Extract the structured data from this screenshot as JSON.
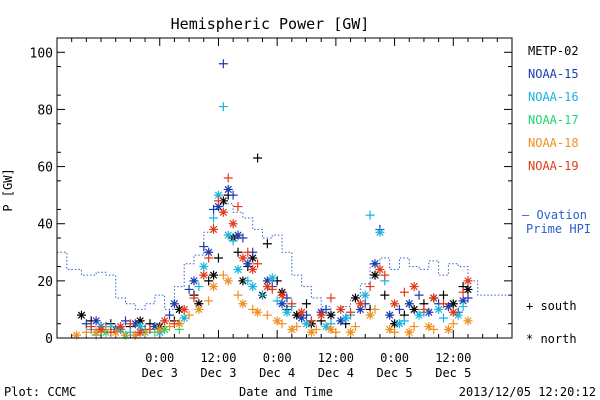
{
  "chart_data": {
    "type": "scatter",
    "title": "Hemispheric Power [GW]",
    "ylabel": "P [GW]",
    "xlabel": "Date and Time",
    "ylim": [
      0,
      105
    ],
    "xlim": [
      -21,
      72
    ],
    "yticks": [
      0,
      20,
      40,
      60,
      80,
      100
    ],
    "xticks": [
      {
        "x": 0,
        "time": "0:00",
        "date": "Dec 3"
      },
      {
        "x": 12,
        "time": "12:00",
        "date": "Dec 3"
      },
      {
        "x": 24,
        "time": "0:00",
        "date": "Dec 4"
      },
      {
        "x": 36,
        "time": "12:00",
        "date": "Dec 4"
      },
      {
        "x": 48,
        "time": "0:00",
        "date": "Dec 5"
      },
      {
        "x": 60,
        "time": "12:00",
        "date": "Dec 5"
      }
    ],
    "legend_position": "right",
    "series": [
      {
        "name": "METP-02",
        "color": "#000000",
        "south": [
          [
            -14,
            6
          ],
          [
            -10,
            5
          ],
          [
            -6,
            4
          ],
          [
            -2,
            5
          ],
          [
            3,
            6
          ],
          [
            7,
            15
          ],
          [
            10,
            20
          ],
          [
            12,
            28
          ],
          [
            14,
            50
          ],
          [
            16,
            30
          ],
          [
            18,
            25
          ],
          [
            20,
            63
          ],
          [
            22,
            33
          ],
          [
            24,
            20
          ],
          [
            26,
            10
          ],
          [
            30,
            12
          ],
          [
            33,
            6
          ],
          [
            38,
            5
          ],
          [
            43,
            10
          ],
          [
            46,
            15
          ],
          [
            50,
            8
          ],
          [
            54,
            12
          ],
          [
            58,
            15
          ],
          [
            62,
            18
          ]
        ],
        "north": [
          [
            -16,
            8
          ],
          [
            -12,
            4
          ],
          [
            -8,
            3
          ],
          [
            -4,
            6
          ],
          [
            0,
            4
          ],
          [
            4,
            10
          ],
          [
            8,
            12
          ],
          [
            11,
            22
          ],
          [
            13,
            48
          ],
          [
            15,
            35
          ],
          [
            17,
            20
          ],
          [
            19,
            28
          ],
          [
            21,
            15
          ],
          [
            25,
            16
          ],
          [
            28,
            8
          ],
          [
            31,
            5
          ],
          [
            35,
            8
          ],
          [
            40,
            14
          ],
          [
            44,
            22
          ],
          [
            48,
            5
          ],
          [
            52,
            10
          ],
          [
            56,
            14
          ],
          [
            60,
            12
          ],
          [
            63,
            17
          ]
        ]
      },
      {
        "name": "NOAA-15",
        "color": "#1a3bb0",
        "south": [
          [
            -15,
            5
          ],
          [
            -11,
            4
          ],
          [
            -7,
            6
          ],
          [
            -3,
            3
          ],
          [
            2,
            8
          ],
          [
            6,
            17
          ],
          [
            9,
            32
          ],
          [
            11,
            45
          ],
          [
            13,
            96
          ],
          [
            15,
            50
          ],
          [
            17,
            35
          ],
          [
            19,
            30
          ],
          [
            23,
            18
          ],
          [
            26,
            14
          ],
          [
            30,
            8
          ],
          [
            34,
            10
          ],
          [
            38,
            7
          ],
          [
            42,
            12
          ],
          [
            45,
            38
          ],
          [
            49,
            10
          ],
          [
            53,
            15
          ],
          [
            57,
            12
          ],
          [
            61,
            9
          ],
          [
            63,
            14
          ]
        ],
        "north": [
          [
            -13,
            6
          ],
          [
            -9,
            3
          ],
          [
            -5,
            5
          ],
          [
            -1,
            4
          ],
          [
            3,
            12
          ],
          [
            7,
            20
          ],
          [
            10,
            30
          ],
          [
            12,
            46
          ],
          [
            14,
            52
          ],
          [
            16,
            36
          ],
          [
            18,
            26
          ],
          [
            22,
            20
          ],
          [
            25,
            12
          ],
          [
            29,
            7
          ],
          [
            33,
            9
          ],
          [
            37,
            6
          ],
          [
            41,
            10
          ],
          [
            44,
            26
          ],
          [
            47,
            8
          ],
          [
            51,
            12
          ],
          [
            55,
            9
          ],
          [
            59,
            11
          ],
          [
            62,
            13
          ]
        ]
      },
      {
        "name": "NOAA-16",
        "color": "#19b3e0",
        "south": [
          [
            -14,
            3
          ],
          [
            -10,
            4
          ],
          [
            -6,
            2
          ],
          [
            -2,
            3
          ],
          [
            4,
            5
          ],
          [
            8,
            18
          ],
          [
            11,
            42
          ],
          [
            13,
            81
          ],
          [
            15,
            34
          ],
          [
            18,
            20
          ],
          [
            21,
            15
          ],
          [
            24,
            13
          ],
          [
            27,
            11
          ],
          [
            31,
            6
          ],
          [
            35,
            5
          ],
          [
            39,
            8
          ],
          [
            43,
            43
          ],
          [
            46,
            20
          ],
          [
            50,
            6
          ],
          [
            54,
            9
          ],
          [
            58,
            7
          ],
          [
            62,
            11
          ]
        ],
        "north": [
          [
            -12,
            4
          ],
          [
            -8,
            3
          ],
          [
            -4,
            4
          ],
          [
            0,
            2
          ],
          [
            5,
            7
          ],
          [
            9,
            25
          ],
          [
            12,
            50
          ],
          [
            14,
            36
          ],
          [
            16,
            24
          ],
          [
            19,
            18
          ],
          [
            23,
            21
          ],
          [
            26,
            9
          ],
          [
            30,
            5
          ],
          [
            34,
            4
          ],
          [
            38,
            7
          ],
          [
            42,
            15
          ],
          [
            45,
            37
          ],
          [
            49,
            5
          ],
          [
            53,
            8
          ],
          [
            57,
            10
          ],
          [
            61,
            8
          ]
        ]
      },
      {
        "name": "NOAA-17",
        "color": "#22d873",
        "south": [
          [
            -13,
            1
          ],
          [
            -9,
            2
          ],
          [
            -5,
            1
          ],
          [
            -1,
            2
          ],
          [
            4,
            3
          ]
        ],
        "north": [
          [
            -11,
            2
          ],
          [
            -7,
            1
          ],
          [
            -3,
            2
          ],
          [
            1,
            3
          ]
        ]
      },
      {
        "name": "NOAA-18",
        "color": "#f09020",
        "south": [
          [
            -15,
            2
          ],
          [
            -11,
            3
          ],
          [
            -7,
            1
          ],
          [
            -3,
            2
          ],
          [
            2,
            4
          ],
          [
            6,
            8
          ],
          [
            10,
            13
          ],
          [
            13,
            22
          ],
          [
            16,
            15
          ],
          [
            19,
            10
          ],
          [
            22,
            8
          ],
          [
            25,
            5
          ],
          [
            28,
            4
          ],
          [
            32,
            3
          ],
          [
            36,
            2
          ],
          [
            40,
            4
          ],
          [
            44,
            10
          ],
          [
            48,
            2
          ],
          [
            52,
            4
          ],
          [
            56,
            3
          ],
          [
            60,
            5
          ]
        ],
        "north": [
          [
            -17,
            1
          ],
          [
            -13,
            2
          ],
          [
            -9,
            2
          ],
          [
            -5,
            1
          ],
          [
            0,
            3
          ],
          [
            4,
            5
          ],
          [
            8,
            10
          ],
          [
            11,
            18
          ],
          [
            14,
            20
          ],
          [
            17,
            12
          ],
          [
            20,
            9
          ],
          [
            24,
            6
          ],
          [
            27,
            3
          ],
          [
            31,
            2
          ],
          [
            35,
            3
          ],
          [
            39,
            2
          ],
          [
            43,
            8
          ],
          [
            47,
            3
          ],
          [
            51,
            2
          ],
          [
            55,
            4
          ],
          [
            59,
            3
          ],
          [
            63,
            6
          ]
        ]
      },
      {
        "name": "NOAA-19",
        "color": "#e03a1a",
        "south": [
          [
            -14,
            4
          ],
          [
            -10,
            2
          ],
          [
            -6,
            5
          ],
          [
            -2,
            3
          ],
          [
            3,
            5
          ],
          [
            7,
            14
          ],
          [
            10,
            28
          ],
          [
            12,
            48
          ],
          [
            14,
            56
          ],
          [
            16,
            46
          ],
          [
            18,
            30
          ],
          [
            20,
            26
          ],
          [
            23,
            17
          ],
          [
            27,
            12
          ],
          [
            31,
            6
          ],
          [
            35,
            14
          ],
          [
            39,
            9
          ],
          [
            43,
            18
          ],
          [
            46,
            22
          ],
          [
            50,
            16
          ],
          [
            54,
            10
          ],
          [
            58,
            12
          ],
          [
            62,
            16
          ]
        ],
        "north": [
          [
            -12,
            3
          ],
          [
            -8,
            4
          ],
          [
            -4,
            2
          ],
          [
            1,
            6
          ],
          [
            5,
            10
          ],
          [
            9,
            22
          ],
          [
            11,
            38
          ],
          [
            13,
            44
          ],
          [
            15,
            40
          ],
          [
            17,
            28
          ],
          [
            19,
            24
          ],
          [
            22,
            18
          ],
          [
            25,
            15
          ],
          [
            29,
            9
          ],
          [
            33,
            8
          ],
          [
            37,
            10
          ],
          [
            41,
            12
          ],
          [
            45,
            24
          ],
          [
            48,
            12
          ],
          [
            52,
            18
          ],
          [
            56,
            14
          ],
          [
            60,
            9
          ],
          [
            63,
            20
          ]
        ]
      }
    ],
    "ovation": {
      "name": "Ovation Prime HPI",
      "label_line1": "— Ovation",
      "label_line2": "Prime HPI",
      "color": "#2a5fd0",
      "points": [
        [
          -21,
          30
        ],
        [
          -19,
          24
        ],
        [
          -16,
          22
        ],
        [
          -13,
          23
        ],
        [
          -11,
          22
        ],
        [
          -9,
          14
        ],
        [
          -7,
          12
        ],
        [
          -5,
          10
        ],
        [
          -3,
          12
        ],
        [
          -1,
          15
        ],
        [
          1,
          10
        ],
        [
          3,
          18
        ],
        [
          5,
          26
        ],
        [
          7,
          29
        ],
        [
          9,
          37
        ],
        [
          11,
          45
        ],
        [
          13,
          47
        ],
        [
          15,
          44
        ],
        [
          17,
          42
        ],
        [
          19,
          38
        ],
        [
          21,
          35
        ],
        [
          23,
          36
        ],
        [
          25,
          30
        ],
        [
          27,
          22
        ],
        [
          29,
          18
        ],
        [
          31,
          14
        ],
        [
          33,
          11
        ],
        [
          35,
          9
        ],
        [
          37,
          11
        ],
        [
          39,
          14
        ],
        [
          41,
          19
        ],
        [
          43,
          26
        ],
        [
          45,
          28
        ],
        [
          47,
          24
        ],
        [
          49,
          28
        ],
        [
          51,
          25
        ],
        [
          53,
          24
        ],
        [
          55,
          27
        ],
        [
          57,
          22
        ],
        [
          59,
          26
        ],
        [
          61,
          25
        ],
        [
          63,
          20
        ],
        [
          65,
          15
        ]
      ]
    },
    "marker_legend": {
      "south_symbol": "+",
      "south_label": "south",
      "north_symbol": "*",
      "north_label": "north"
    }
  },
  "footer": {
    "plot_credit": "Plot: CCMC",
    "timestamp": "2013/12/05 12:20:12"
  }
}
